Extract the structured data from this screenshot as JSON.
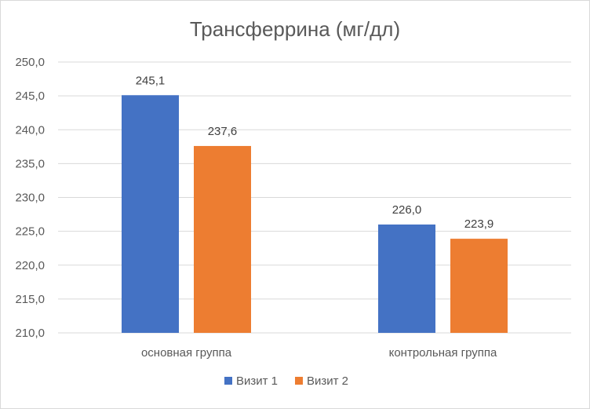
{
  "chart_data": {
    "type": "bar",
    "title": "Трансферрина (мг/дл)",
    "categories": [
      "основная группа",
      "контрольная группа"
    ],
    "series": [
      {
        "name": "Визит 1",
        "values": [
          245.1,
          226.0
        ],
        "labels": [
          "245,1",
          "226,0"
        ],
        "color": "#4472C4"
      },
      {
        "name": "Визит 2",
        "values": [
          237.6,
          223.9
        ],
        "labels": [
          "237,6",
          "223,9"
        ],
        "color": "#ED7D31"
      }
    ],
    "ylim": [
      210,
      250
    ],
    "yticks": [
      210,
      215,
      220,
      225,
      230,
      235,
      240,
      245,
      250
    ],
    "ytick_labels": [
      "210,0",
      "215,0",
      "220,0",
      "225,0",
      "230,0",
      "235,0",
      "240,0",
      "245,0",
      "250,0"
    ],
    "grid": true,
    "legend_position": "bottom",
    "gridline_color": "#d9d9d9"
  }
}
